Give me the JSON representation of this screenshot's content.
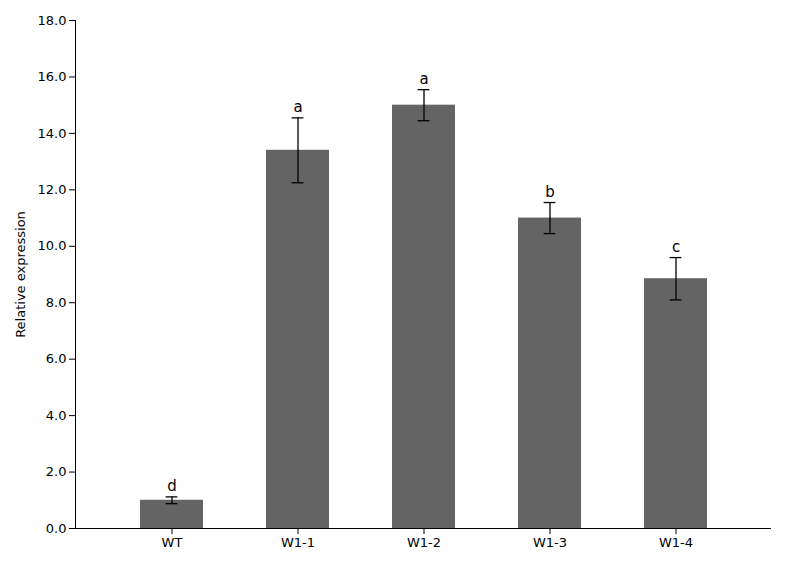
{
  "chart_data": {
    "type": "bar",
    "ylabel": "Relative expression",
    "categories": [
      "WT",
      "W1-1",
      "W1-2",
      "W1-3",
      "W1-4"
    ],
    "values": [
      1.0,
      13.4,
      15.0,
      11.0,
      8.85
    ],
    "errors": [
      0.12,
      1.15,
      0.55,
      0.55,
      0.75
    ],
    "letters": [
      "d",
      "a",
      "a",
      "b",
      "c"
    ],
    "color": "#646464",
    "ylim": [
      0.0,
      18.0
    ],
    "yticks": [
      {
        "value": 0.0,
        "label": "0.0"
      },
      {
        "value": 2.0,
        "label": "2.0"
      },
      {
        "value": 4.0,
        "label": "4.0"
      },
      {
        "value": 6.0,
        "label": "6.0"
      },
      {
        "value": 8.0,
        "label": "8.0"
      },
      {
        "value": 10.0,
        "label": "10.0"
      },
      {
        "value": 12.0,
        "label": "12.0"
      },
      {
        "value": 14.0,
        "label": "14.0"
      },
      {
        "value": 16.0,
        "label": "16.0"
      },
      {
        "value": 18.0,
        "label": "18.0"
      }
    ],
    "grid": false
  }
}
